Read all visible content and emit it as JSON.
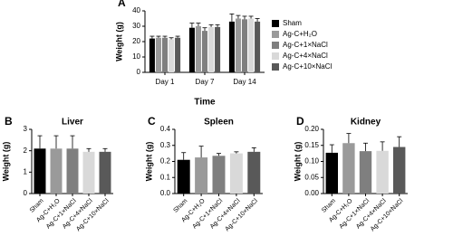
{
  "chart_data": [
    {
      "type": "bar",
      "panel_label": "A",
      "ylabel": "Weight (g)",
      "xlabel": "Time",
      "categories": [
        "Day 1",
        "Day 7",
        "Day 14"
      ],
      "series": [
        {
          "name": "Sham",
          "color": "#000000",
          "values": [
            22,
            29,
            33
          ],
          "errors": [
            1.5,
            3,
            5
          ]
        },
        {
          "name": "Ag-C+H₂O",
          "color": "#9a9a9a",
          "values": [
            22.5,
            30,
            35
          ],
          "errors": [
            1,
            2,
            2
          ]
        },
        {
          "name": "Ag-C+1×NaCl",
          "color": "#7f7f7f",
          "values": [
            22.5,
            27,
            34.5
          ],
          "errors": [
            1,
            2,
            2
          ]
        },
        {
          "name": "Ag-C+4×NaCl",
          "color": "#d9d9d9",
          "values": [
            21.5,
            29.5,
            35
          ],
          "errors": [
            1,
            1.5,
            1.5
          ]
        },
        {
          "name": "Ag-C+10×NaCl",
          "color": "#595959",
          "values": [
            22.5,
            29.5,
            33
          ],
          "errors": [
            1,
            1.5,
            2
          ]
        }
      ],
      "ylim": [
        0,
        40
      ],
      "yticks": [
        0,
        10,
        20,
        30,
        40
      ]
    },
    {
      "type": "bar",
      "panel_label": "B",
      "title": "Liver",
      "ylabel": "Weight (g)",
      "categories": [
        "Sham",
        "Ag-C+H₂O",
        "Ag-C+1×NaCl",
        "Ag-C+4×NaCl",
        "Ag-C+10×NaCl"
      ],
      "values": [
        2.1,
        2.1,
        2.1,
        1.95,
        1.95
      ],
      "errors": [
        0.6,
        0.6,
        0.6,
        0.15,
        0.15
      ],
      "colors": [
        "#000000",
        "#9a9a9a",
        "#7f7f7f",
        "#d9d9d9",
        "#595959"
      ],
      "ylim": [
        0,
        3
      ],
      "yticks": [
        0,
        1,
        2,
        3
      ]
    },
    {
      "type": "bar",
      "panel_label": "C",
      "title": "Spleen",
      "ylabel": "Weight (g)",
      "categories": [
        "Sham",
        "Ag-C+H₂O",
        "Ag-C+1×NaCl",
        "Ag-C+4×NaCl",
        "Ag-C+10×NaCl"
      ],
      "values": [
        0.21,
        0.225,
        0.235,
        0.25,
        0.26
      ],
      "errors": [
        0.045,
        0.07,
        0.015,
        0.01,
        0.025
      ],
      "colors": [
        "#000000",
        "#9a9a9a",
        "#7f7f7f",
        "#d9d9d9",
        "#595959"
      ],
      "ylim": [
        0,
        0.4
      ],
      "yticks": [
        {
          "value": 0,
          "label": "0.0"
        },
        0.1,
        0.2,
        0.3,
        0.4
      ]
    },
    {
      "type": "bar",
      "panel_label": "D",
      "title": "Kidney",
      "ylabel": "Weight (g)",
      "categories": [
        "Sham",
        "Ag-C+H₂O",
        "Ag-C+1×NaCl",
        "Ag-C+4×NaCl",
        "Ag-C+10×NaCl"
      ],
      "values": [
        0.127,
        0.157,
        0.132,
        0.133,
        0.145
      ],
      "errors": [
        0.025,
        0.03,
        0.025,
        0.028,
        0.032
      ],
      "colors": [
        "#000000",
        "#9a9a9a",
        "#7f7f7f",
        "#d9d9d9",
        "#595959"
      ],
      "ylim": [
        0,
        0.2
      ],
      "yticks": [
        {
          "value": 0,
          "label": "0.00"
        },
        0.05,
        {
          "value": 0.1,
          "label": "0.10"
        },
        0.15,
        {
          "value": 0.2,
          "label": "0.20"
        }
      ]
    }
  ]
}
